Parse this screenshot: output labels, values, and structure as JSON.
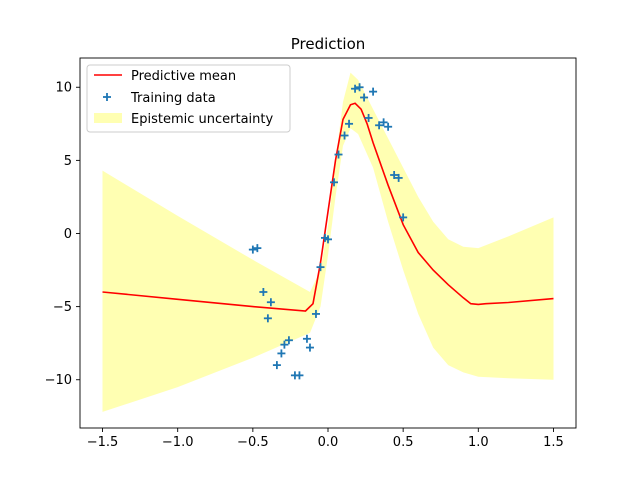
{
  "chart_data": {
    "type": "line",
    "title": "Prediction",
    "xlabel": "",
    "ylabel": "",
    "xlim": [
      -1.65,
      1.65
    ],
    "ylim": [
      -13.3,
      12.0
    ],
    "grid": false,
    "legend_position": "top-left",
    "x_ticks": [
      -1.5,
      -1.0,
      -0.5,
      0.0,
      0.5,
      1.0,
      1.5
    ],
    "x_tick_labels": [
      "−1.5",
      "−1.0",
      "−0.5",
      "0.0",
      "0.5",
      "1.0",
      "1.5"
    ],
    "y_ticks": [
      -10,
      -5,
      0,
      5,
      10
    ],
    "y_tick_labels": [
      "−10",
      "−5",
      "0",
      "5",
      "10"
    ],
    "series": [
      {
        "name": "Predictive mean",
        "kind": "line",
        "color": "#ff0000",
        "x": [
          -1.5,
          -1.0,
          -0.5,
          -0.15,
          -0.1,
          -0.05,
          0.0,
          0.05,
          0.1,
          0.15,
          0.18,
          0.22,
          0.26,
          0.3,
          0.4,
          0.5,
          0.6,
          0.7,
          0.8,
          0.9,
          0.95,
          1.0,
          1.05,
          1.2,
          1.5
        ],
        "y": [
          -4.0,
          -4.5,
          -5.0,
          -5.3,
          -4.8,
          -2.0,
          1.5,
          5.0,
          7.8,
          8.8,
          8.9,
          8.5,
          7.5,
          6.2,
          3.3,
          0.6,
          -1.3,
          -2.5,
          -3.5,
          -4.4,
          -4.8,
          -4.85,
          -4.8,
          -4.72,
          -4.45
        ]
      },
      {
        "name": "Training data",
        "kind": "scatter",
        "color": "#1f77b4",
        "x": [
          -0.5,
          -0.47,
          -0.43,
          -0.4,
          -0.38,
          -0.34,
          -0.31,
          -0.29,
          -0.26,
          -0.22,
          -0.19,
          -0.14,
          -0.12,
          -0.08,
          -0.05,
          -0.02,
          0.0,
          0.04,
          0.07,
          0.11,
          0.14,
          0.18,
          0.21,
          0.24,
          0.27,
          0.3,
          0.34,
          0.37,
          0.4,
          0.44,
          0.47,
          0.5
        ],
        "y": [
          -1.1,
          -1.0,
          -4.0,
          -5.8,
          -4.7,
          -9.0,
          -8.2,
          -7.6,
          -7.3,
          -9.7,
          -9.7,
          -7.2,
          -7.8,
          -5.5,
          -2.3,
          -0.3,
          -0.4,
          3.5,
          5.4,
          6.7,
          7.5,
          9.9,
          10.0,
          9.3,
          7.9,
          9.7,
          7.4,
          7.6,
          7.3,
          4.0,
          3.8,
          1.1
        ]
      },
      {
        "name": "Epistemic uncertainty",
        "kind": "band",
        "color": "#ffff00",
        "x": [
          -1.5,
          -1.0,
          -0.5,
          -0.12,
          -0.05,
          0.0,
          0.05,
          0.1,
          0.15,
          0.2,
          0.3,
          0.4,
          0.5,
          0.6,
          0.7,
          0.8,
          0.9,
          1.0,
          1.2,
          1.5
        ],
        "upper": [
          4.3,
          1.2,
          -1.8,
          -4.0,
          -2.5,
          0.5,
          5.0,
          9.0,
          11.0,
          10.5,
          8.5,
          6.5,
          4.5,
          2.5,
          0.8,
          -0.4,
          -0.9,
          -1.0,
          -0.2,
          1.1
        ],
        "lower": [
          -12.2,
          -10.5,
          -8.5,
          -6.8,
          -5.0,
          -1.5,
          2.5,
          6.0,
          7.2,
          6.8,
          4.5,
          0.8,
          -2.5,
          -5.5,
          -7.8,
          -9.0,
          -9.5,
          -9.8,
          -9.9,
          -10.0
        ]
      }
    ]
  }
}
